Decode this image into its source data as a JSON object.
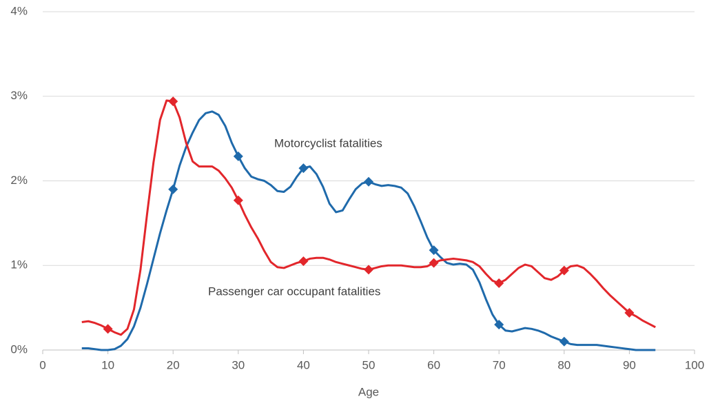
{
  "chart_data": {
    "type": "line",
    "xlabel": "Age",
    "xlim": [
      0,
      100
    ],
    "xticks": [
      0,
      10,
      20,
      30,
      40,
      50,
      60,
      70,
      80,
      90,
      100
    ],
    "ylim": [
      0,
      4
    ],
    "yticks": [
      {
        "value": 0,
        "label": "0%"
      },
      {
        "value": 1,
        "label": "1%"
      },
      {
        "value": 2,
        "label": "2%"
      },
      {
        "value": 3,
        "label": "3%"
      },
      {
        "value": 4,
        "label": "4%"
      }
    ],
    "grid": true,
    "x": [
      6,
      7,
      8,
      9,
      10,
      11,
      12,
      13,
      14,
      15,
      16,
      17,
      18,
      19,
      20,
      21,
      22,
      23,
      24,
      25,
      26,
      27,
      28,
      29,
      30,
      31,
      32,
      33,
      34,
      35,
      36,
      37,
      38,
      39,
      40,
      41,
      42,
      43,
      44,
      45,
      46,
      47,
      48,
      49,
      50,
      51,
      52,
      53,
      54,
      55,
      56,
      57,
      58,
      59,
      60,
      61,
      62,
      63,
      64,
      65,
      66,
      67,
      68,
      69,
      70,
      71,
      72,
      73,
      74,
      75,
      76,
      77,
      78,
      79,
      80,
      81,
      82,
      83,
      84,
      85,
      86,
      87,
      88,
      89,
      90,
      91,
      92,
      93,
      94
    ],
    "series": [
      {
        "name": "Motorcyclist fatalities",
        "color": "#1f6aab",
        "markers": [
          20,
          30,
          40,
          50,
          60,
          70,
          80
        ],
        "values": [
          0.02,
          0.02,
          0.01,
          0.0,
          0.0,
          0.01,
          0.05,
          0.13,
          0.28,
          0.5,
          0.78,
          1.08,
          1.38,
          1.65,
          1.9,
          2.18,
          2.4,
          2.57,
          2.72,
          2.8,
          2.82,
          2.78,
          2.65,
          2.45,
          2.29,
          2.15,
          2.05,
          2.02,
          2.0,
          1.95,
          1.88,
          1.87,
          1.93,
          2.05,
          2.15,
          2.17,
          2.08,
          1.93,
          1.73,
          1.63,
          1.65,
          1.78,
          1.9,
          1.97,
          1.99,
          1.96,
          1.94,
          1.95,
          1.94,
          1.92,
          1.85,
          1.7,
          1.52,
          1.33,
          1.18,
          1.1,
          1.03,
          1.01,
          1.02,
          1.01,
          0.95,
          0.8,
          0.6,
          0.42,
          0.3,
          0.23,
          0.22,
          0.24,
          0.26,
          0.25,
          0.23,
          0.2,
          0.16,
          0.13,
          0.1,
          0.07,
          0.06,
          0.06,
          0.06,
          0.06,
          0.05,
          0.04,
          0.03,
          0.02,
          0.01,
          0.0,
          0.0,
          0.0,
          0.0
        ]
      },
      {
        "name": "Passenger car occupant fatalities",
        "color": "#e2262b",
        "markers": [
          10,
          20,
          30,
          40,
          50,
          60,
          70,
          80,
          90
        ],
        "values": [
          0.33,
          0.34,
          0.32,
          0.29,
          0.25,
          0.21,
          0.18,
          0.25,
          0.48,
          0.95,
          1.6,
          2.22,
          2.72,
          2.95,
          2.94,
          2.75,
          2.45,
          2.23,
          2.17,
          2.17,
          2.17,
          2.12,
          2.03,
          1.92,
          1.77,
          1.6,
          1.45,
          1.32,
          1.17,
          1.04,
          0.98,
          0.97,
          1.0,
          1.03,
          1.05,
          1.08,
          1.09,
          1.09,
          1.07,
          1.04,
          1.02,
          1.0,
          0.98,
          0.96,
          0.95,
          0.97,
          0.99,
          1.0,
          1.0,
          1.0,
          0.99,
          0.98,
          0.98,
          0.99,
          1.03,
          1.06,
          1.07,
          1.08,
          1.07,
          1.06,
          1.04,
          0.99,
          0.9,
          0.82,
          0.79,
          0.83,
          0.9,
          0.97,
          1.01,
          0.99,
          0.92,
          0.85,
          0.83,
          0.87,
          0.94,
          0.99,
          1.0,
          0.97,
          0.9,
          0.82,
          0.73,
          0.65,
          0.58,
          0.51,
          0.44,
          0.4,
          0.35,
          0.31,
          0.27
        ]
      }
    ]
  }
}
